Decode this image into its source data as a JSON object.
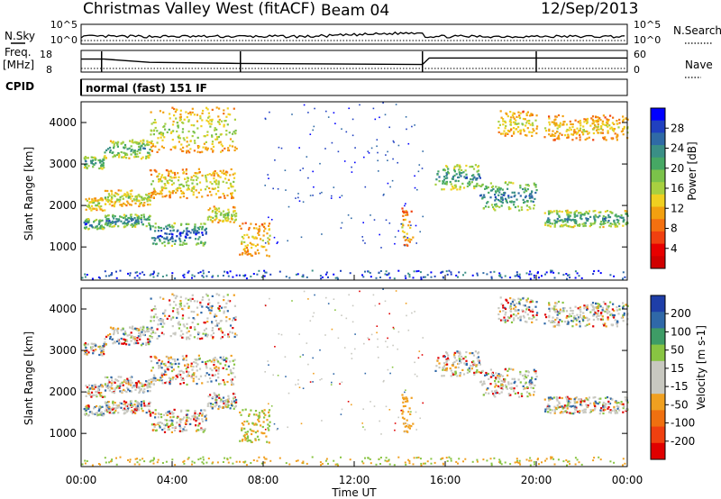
{
  "header": {
    "station": "Christmas Valley West (fitACF)",
    "beam": "Beam 04",
    "date": "12/Sep/2013"
  },
  "left_labels": {
    "nsky": "N.Sky",
    "freq": "Freq.",
    "freq_unit": "[MHz]",
    "cpid": "CPID"
  },
  "right_labels": {
    "nsearch": "N.Search",
    "nave": "Nave"
  },
  "cpid_text": "normal (fast) 151 IF",
  "colors": {
    "power_scale": [
      "#0000ff",
      "#2040c0",
      "#2f6aa6",
      "#3a8f86",
      "#46a864",
      "#7bc24a",
      "#a8d040",
      "#f0d020",
      "#f2a010",
      "#f47010",
      "#f04010",
      "#e80000",
      "#d00000"
    ],
    "velocity_scale": [
      "#1e3ea8",
      "#2f68a8",
      "#3e9c66",
      "#88c442",
      "#c8c8c0",
      "#c8c8c0",
      "#f0a020",
      "#f07010",
      "#f04010",
      "#e00000"
    ]
  },
  "chart_data": [
    {
      "type": "line",
      "panel": "noise",
      "ylabel_left": "N.Sky",
      "ylabel_right": "N.Search",
      "yticks_left": [
        "10^5",
        "10^0"
      ],
      "yticks_right": [
        "10^5",
        "10^0"
      ],
      "scale": "log"
    },
    {
      "type": "line",
      "panel": "frequency",
      "ylabel_left": "Freq. [MHz]",
      "ylabel_right": "Nave",
      "yticks_left": [
        "18",
        "8"
      ],
      "yticks_right": [
        "60",
        "0"
      ],
      "series": [
        {
          "name": "Freq.",
          "x_hours": [
            0,
            0.9,
            1.0,
            3.0,
            7.0,
            15.0,
            15.3,
            20.0,
            24.0
          ],
          "values": [
            14,
            14,
            14,
            12.5,
            12,
            11.5,
            14.5,
            14.5,
            14.5
          ]
        }
      ]
    },
    {
      "type": "heatmap",
      "panel": "power",
      "ylabel": "Slant Range [km]",
      "yticks": [
        "1000",
        "2000",
        "3000",
        "4000"
      ],
      "ylim": [
        200,
        4500
      ],
      "colorbar_label": "Power [dB]",
      "colorbar_ticks": [
        "28",
        "24",
        "20",
        "16",
        "12",
        "8",
        "4"
      ],
      "clim": [
        0,
        32
      ]
    },
    {
      "type": "heatmap",
      "panel": "velocity",
      "ylabel": "Slant Range [km]",
      "yticks": [
        "1000",
        "2000",
        "3000",
        "4000"
      ],
      "ylim": [
        200,
        4500
      ],
      "colorbar_label": "Velocity [m s-1]",
      "colorbar_ticks": [
        "200",
        "100",
        "50",
        "15",
        "-15",
        "-50",
        "-100",
        "-200"
      ]
    }
  ],
  "xaxis": {
    "ticks": [
      "00:00",
      "04:00",
      "08:00",
      "12:00",
      "16:00",
      "20:00",
      "00:00"
    ],
    "label": "Time UT",
    "xlim_hours": [
      0,
      24
    ]
  },
  "bands": [
    {
      "x0": 0.1,
      "x1": 1.0,
      "y0": 1450,
      "y1": 1700,
      "c": 0.9
    },
    {
      "x0": 1.0,
      "x1": 3.0,
      "y0": 1500,
      "y1": 1800,
      "c": 0.85
    },
    {
      "x0": 3.0,
      "x1": 5.5,
      "y0": 1050,
      "y1": 1600,
      "c": 0.95
    },
    {
      "x0": 5.5,
      "x1": 6.8,
      "y0": 1600,
      "y1": 2000,
      "c": 0.6
    },
    {
      "x0": 0.1,
      "x1": 1.0,
      "y0": 1900,
      "y1": 2200,
      "c": 0.55
    },
    {
      "x0": 1.0,
      "x1": 3.0,
      "y0": 2000,
      "y1": 2400,
      "c": 0.55
    },
    {
      "x0": 3.0,
      "x1": 6.8,
      "y0": 2200,
      "y1": 2900,
      "c": 0.5
    },
    {
      "x0": 0.1,
      "x1": 1.0,
      "y0": 2900,
      "y1": 3200,
      "c": 0.8
    },
    {
      "x0": 1.0,
      "x1": 3.0,
      "y0": 3150,
      "y1": 3600,
      "c": 0.75
    },
    {
      "x0": 3.0,
      "x1": 6.8,
      "y0": 3300,
      "y1": 4400,
      "c": 0.55
    },
    {
      "x0": 6.9,
      "x1": 8.3,
      "y0": 800,
      "y1": 1600,
      "c": 0.45
    },
    {
      "x0": 14.0,
      "x1": 14.6,
      "y0": 1000,
      "y1": 2000,
      "c": 0.4
    },
    {
      "x0": 15.5,
      "x1": 17.5,
      "y0": 2400,
      "y1": 3000,
      "c": 0.8
    },
    {
      "x0": 17.5,
      "x1": 20.0,
      "y0": 1900,
      "y1": 2600,
      "c": 0.85
    },
    {
      "x0": 20.3,
      "x1": 24.0,
      "y0": 1500,
      "y1": 1900,
      "c": 0.8
    },
    {
      "x0": 18.3,
      "x1": 20.0,
      "y0": 3700,
      "y1": 4300,
      "c": 0.5
    },
    {
      "x0": 20.3,
      "x1": 24.0,
      "y0": 3600,
      "y1": 4200,
      "c": 0.45
    }
  ]
}
